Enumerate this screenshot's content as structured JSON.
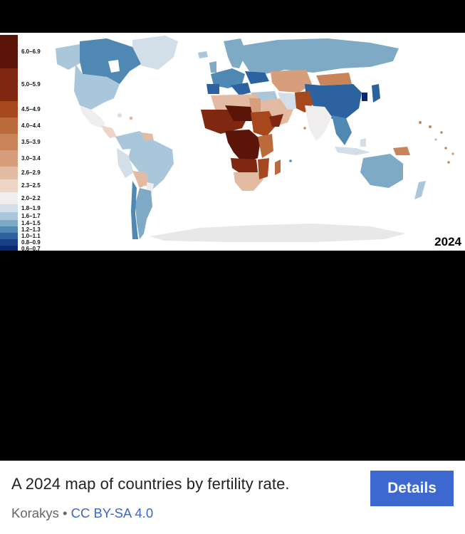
{
  "map": {
    "year": "2024",
    "legend": [
      {
        "label": "6.0–6.9",
        "color": "#5a1508"
      },
      {
        "label": "5.0–5.9",
        "color": "#7f2710"
      },
      {
        "label": "4.5–4.9",
        "color": "#a5481d"
      },
      {
        "label": "4.0–4.4",
        "color": "#bb6a3c"
      },
      {
        "label": "3.5–3.9",
        "color": "#c98559"
      },
      {
        "label": "3.0–3.4",
        "color": "#d69e7a"
      },
      {
        "label": "2.6–2.9",
        "color": "#e3bba2"
      },
      {
        "label": "2.3–2.5",
        "color": "#eed5c6"
      },
      {
        "label": "2.0–2.2",
        "color": "#efeded"
      },
      {
        "label": "1.8–1.9",
        "color": "#d2dfe9"
      },
      {
        "label": "1.6–1.7",
        "color": "#a9c6da"
      },
      {
        "label": "1.4–1.5",
        "color": "#7faac6"
      },
      {
        "label": "1.2–1.3",
        "color": "#4f88b3"
      },
      {
        "label": "1.0–1.1",
        "color": "#2c62a0"
      },
      {
        "label": "0.8–0.9",
        "color": "#173f88"
      },
      {
        "label": "0.6–0.7",
        "color": "#0b2770"
      }
    ]
  },
  "caption": {
    "text": "A 2024 map of countries by fertility rate.",
    "author": "Korakys",
    "separator": "•",
    "license": "CC BY-SA 4.0"
  },
  "actions": {
    "details_label": "Details"
  }
}
